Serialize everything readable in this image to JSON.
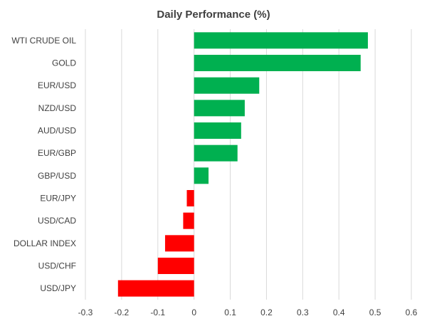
{
  "chart_data": {
    "type": "bar",
    "orientation": "horizontal",
    "title": "Daily Performance (%)",
    "categories": [
      "WTI CRUDE OIL",
      "GOLD",
      "EUR/USD",
      "NZD/USD",
      "AUD/USD",
      "EUR/GBP",
      "GBP/USD",
      "EUR/JPY",
      "USD/CAD",
      "DOLLAR INDEX",
      "USD/CHF",
      "USD/JPY"
    ],
    "values": [
      0.48,
      0.46,
      0.18,
      0.14,
      0.13,
      0.12,
      0.04,
      -0.02,
      -0.03,
      -0.08,
      -0.1,
      -0.21
    ],
    "xlim": [
      -0.3,
      0.6
    ],
    "xticks": [
      "-0.3",
      "-0.2",
      "-0.1",
      "0",
      "0.1",
      "0.2",
      "0.3",
      "0.4",
      "0.5",
      "0.6"
    ],
    "grid": "vertical",
    "positive_color": "#00b050",
    "negative_color": "#ff0000"
  }
}
